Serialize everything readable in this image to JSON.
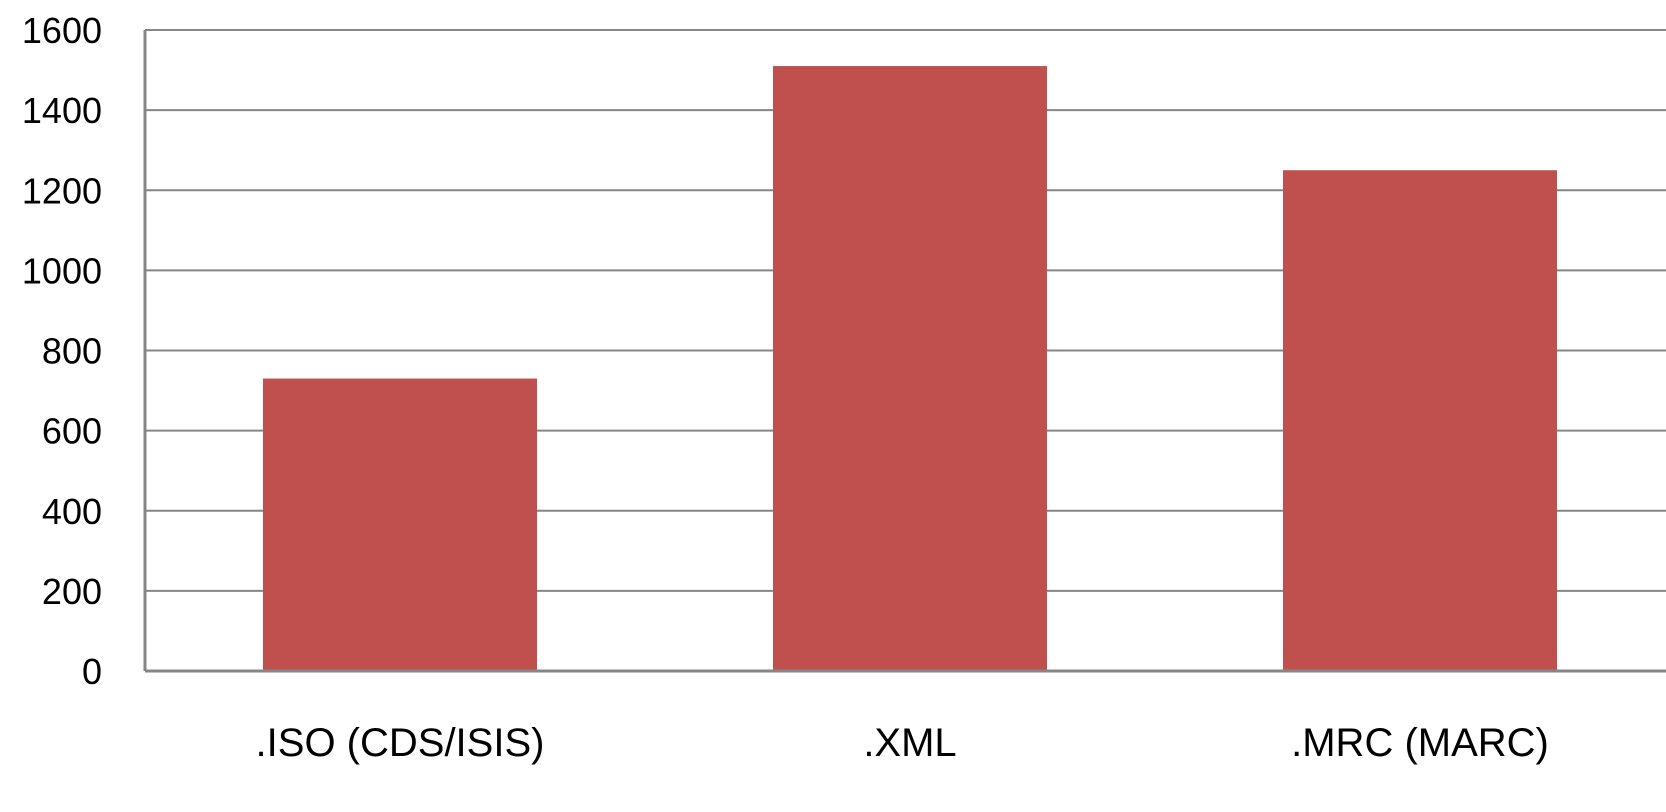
{
  "chart_data": {
    "type": "bar",
    "title": "",
    "xlabel": "",
    "ylabel": "",
    "categories": [
      ".ISO (CDS/ISIS)",
      ".XML",
      ".MRC (MARC)"
    ],
    "values": [
      730,
      1510,
      1250
    ],
    "ylim": [
      0,
      1600
    ],
    "yticks": [
      "0",
      "200",
      "400",
      "600",
      "800",
      "1000",
      "1200",
      "1400",
      "1600"
    ],
    "grid": true,
    "legend": "none",
    "bar_color": "#C0504D"
  }
}
